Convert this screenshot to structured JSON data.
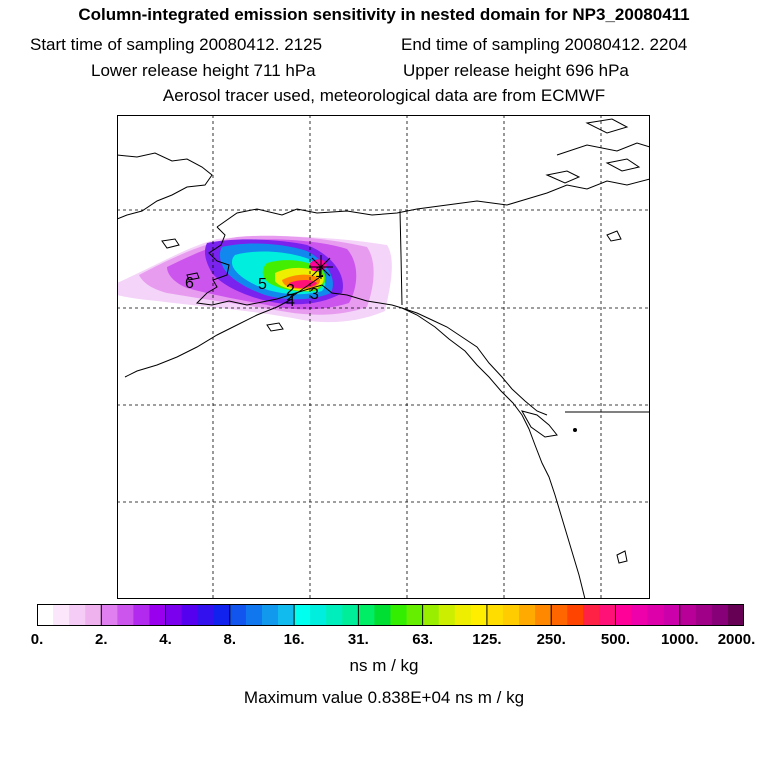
{
  "header": {
    "title": "Column-integrated emission sensitivity in nested domain for NP3_20080411",
    "start_time": "Start time of sampling 20080412.  2125",
    "end_time": "End time of sampling 20080412.  2204",
    "lower_height": "Lower release height  711 hPa",
    "upper_height": "Upper release height  696 hPa",
    "tracer_info": "Aerosol tracer used, meteorological data are from ECMWF"
  },
  "map": {
    "labels": [
      "1",
      "2",
      "3",
      "4",
      "5",
      "6"
    ],
    "colors": {
      "land_outline": "#000000",
      "grid": "#000000"
    }
  },
  "colorbar": {
    "ticks": [
      "0.",
      "2.",
      "4.",
      "8.",
      "16.",
      "31.",
      "63.",
      "125.",
      "250.",
      "500.",
      "1000.",
      "2000."
    ],
    "colors": [
      "#ffffff",
      "#fbe6fb",
      "#f5ccf5",
      "#efb2ef",
      "#e080f0",
      "#cc55ee",
      "#b22aee",
      "#9900ee",
      "#7a00ee",
      "#5500ee",
      "#3311ee",
      "#1122ee",
      "#1155ee",
      "#1177ee",
      "#1199ee",
      "#11bbee",
      "#00ffee",
      "#00eedd",
      "#00eebb",
      "#00ee99",
      "#00ee66",
      "#00dd33",
      "#33ee00",
      "#66ee00",
      "#99ee00",
      "#ccee00",
      "#eeee00",
      "#ffee00",
      "#ffdd00",
      "#ffcc00",
      "#ffaa00",
      "#ff8800",
      "#ff6600",
      "#ff4400",
      "#ff2244",
      "#ff1177",
      "#ff0099",
      "#ee00aa",
      "#dd00aa",
      "#cc00aa",
      "#b80099",
      "#a00088",
      "#880077",
      "#660055"
    ],
    "units": "ns m / kg",
    "max_value": "Maximum value  0.838E+04 ns m / kg"
  }
}
